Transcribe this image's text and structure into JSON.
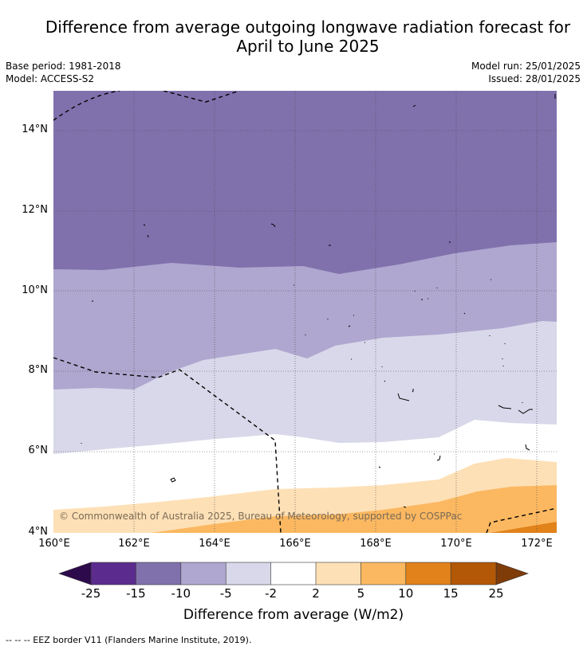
{
  "title_line1": "Difference from average outgoing longwave radiation forecast for",
  "title_line2": "April to June 2025",
  "base_period": "Base period: 1981-2018",
  "model": "Model: ACCESS-S2",
  "model_run": "Model run: 25/01/2025",
  "issued": "Issued: 28/01/2025",
  "copyright": "© Commonwealth of Australia 2025, Bureau of Meteorology, supported by COSPPac",
  "y_ticks": [
    "14°N",
    "12°N",
    "10°N",
    "8°N",
    "6°N",
    "4°N"
  ],
  "x_ticks": [
    "160°E",
    "162°E",
    "164°E",
    "166°E",
    "168°E",
    "170°E",
    "172°E"
  ],
  "colorbar": {
    "ticks": [
      "-25",
      "-15",
      "-10",
      "-5",
      "-2",
      "2",
      "5",
      "10",
      "15",
      "25"
    ],
    "colors": [
      "#5b2c8d",
      "#8071ad",
      "#afa7cf",
      "#d8d8ea",
      "#ffffff",
      "#fee0b6",
      "#fbb861",
      "#e1821b",
      "#b35806"
    ],
    "under_color": "#2d0a4b",
    "over_color": "#7f3b08",
    "label": "Difference from average (W/m2)"
  },
  "legend_text": "--  --  -- EEZ border V11 (Flanders Marine Institute, 2019).",
  "map": {
    "lon_range": [
      160,
      172.5
    ],
    "lat_range": [
      4,
      15
    ]
  }
}
